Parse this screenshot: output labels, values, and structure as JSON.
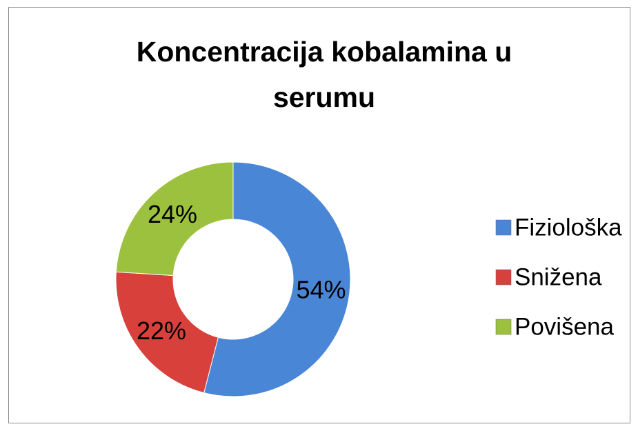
{
  "chart_data": {
    "type": "donut",
    "title": "Koncentracija kobalamina u serumu",
    "categories": [
      "Fiziološka",
      "Snižena",
      "Povišena"
    ],
    "values": [
      54,
      22,
      24
    ],
    "value_labels": [
      "54%",
      "22%",
      "24%"
    ],
    "colors": [
      "#4a86d6",
      "#d8403c",
      "#9cc13e"
    ]
  }
}
